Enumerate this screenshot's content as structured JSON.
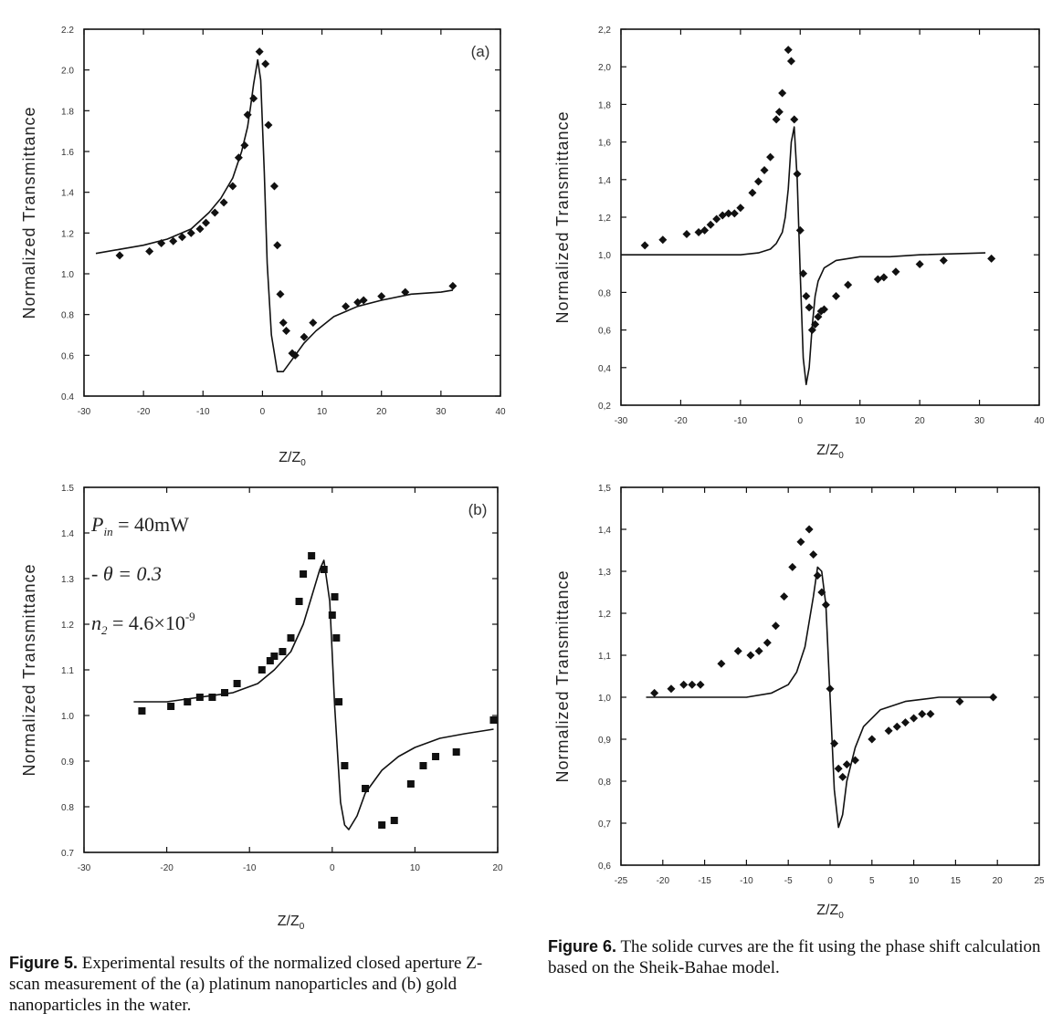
{
  "charts": [
    {
      "id": "fig5a",
      "panel_label": "(a)",
      "xlabel": "Z/Z",
      "xlabel_sub": "0",
      "ylabel": "Normalized Transmittance",
      "annotations": []
    },
    {
      "id": "fig6a",
      "panel_label": "",
      "xlabel": "Z/Z",
      "xlabel_sub": "0",
      "ylabel": "Normalized Transmittance",
      "annotations": []
    },
    {
      "id": "fig5b",
      "panel_label": "(b)",
      "xlabel": "Z/Z",
      "xlabel_sub": "0",
      "ylabel": "Normalized Transmittance",
      "annotations": [
        "Pin = 40mW",
        "- θ = 0.3",
        "n2 = 4.6×10⁻⁹"
      ]
    },
    {
      "id": "fig6b",
      "panel_label": "",
      "xlabel": "Z/Z",
      "xlabel_sub": "0",
      "ylabel": "Normalized Transmittance",
      "annotations": []
    }
  ],
  "captions": {
    "fig5_label": "Figure 5.",
    "fig5_text": "Experimental results of the normalized closed aperture Z-scan measurement of the (a) platinum nanoparticles and (b) gold nanoparticles in the water.",
    "fig6_label": "Figure 6.",
    "fig6_text": "The solide curves are the fit using the phase shift calculation based on the Sheik-Bahae model."
  },
  "chart_data": [
    {
      "type": "scatter",
      "xlim": [
        -30,
        40
      ],
      "ylim": [
        0.4,
        2.2
      ],
      "xticks": [
        "-30",
        "-20",
        "-10",
        "0",
        "10",
        "20",
        "30",
        "40"
      ],
      "yticks": [
        "0.4",
        "0.6",
        "0.8",
        "1.0",
        "1.2",
        "1.4",
        "1.6",
        "1.8",
        "2.0",
        "2.2"
      ],
      "series": [
        {
          "kind": "points",
          "marker": "diamond",
          "x": [
            -24,
            -19,
            -17,
            -15,
            -13.5,
            -12,
            -10.5,
            -9.5,
            -8,
            -6.5,
            -5,
            -4,
            -3,
            -2.5,
            -1.5,
            -0.5,
            0.5,
            1,
            2,
            2.5,
            3,
            3.5,
            4,
            5,
            5.5,
            7,
            8.5,
            14,
            16,
            17,
            20,
            24,
            32
          ],
          "y": [
            1.09,
            1.11,
            1.15,
            1.16,
            1.18,
            1.2,
            1.22,
            1.25,
            1.3,
            1.35,
            1.43,
            1.57,
            1.63,
            1.78,
            1.86,
            2.09,
            2.03,
            1.73,
            1.43,
            1.14,
            0.9,
            0.76,
            0.72,
            0.61,
            0.6,
            0.69,
            0.76,
            0.84,
            0.86,
            0.87,
            0.89,
            0.91,
            0.94
          ]
        },
        {
          "kind": "line",
          "x": [
            -28,
            -24,
            -20,
            -16,
            -12,
            -9,
            -7,
            -5,
            -3.5,
            -2.5,
            -2,
            -1.5,
            -0.8,
            -0.3,
            0.3,
            0.8,
            1.5,
            2.5,
            3.5,
            5,
            7,
            9,
            12,
            16,
            20,
            25,
            30,
            32
          ],
          "y": [
            1.1,
            1.12,
            1.14,
            1.17,
            1.22,
            1.3,
            1.37,
            1.47,
            1.6,
            1.72,
            1.82,
            1.93,
            2.05,
            1.95,
            1.5,
            1.05,
            0.7,
            0.52,
            0.52,
            0.58,
            0.66,
            0.72,
            0.79,
            0.84,
            0.87,
            0.9,
            0.91,
            0.92
          ]
        }
      ]
    },
    {
      "type": "scatter",
      "xlim": [
        -30,
        40
      ],
      "ylim": [
        0.2,
        2.2
      ],
      "xticks": [
        "-30",
        "-20",
        "-10",
        "0",
        "10",
        "20",
        "30",
        "40"
      ],
      "yticks": [
        "0,2",
        "0,4",
        "0,6",
        "0,8",
        "1,0",
        "1,2",
        "1,4",
        "1,6",
        "1,8",
        "2,0",
        "2,2"
      ],
      "series": [
        {
          "kind": "points",
          "marker": "diamond",
          "x": [
            -26,
            -23,
            -19,
            -17,
            -16,
            -15,
            -14,
            -13,
            -12,
            -11,
            -10,
            -8,
            -7,
            -6,
            -5,
            -4,
            -3.5,
            -3,
            -2,
            -1.5,
            -1,
            -0.5,
            0,
            0.5,
            1,
            1.5,
            2,
            2.5,
            3,
            3.5,
            4,
            6,
            8,
            13,
            14,
            16,
            20,
            24,
            32
          ],
          "y": [
            1.05,
            1.08,
            1.11,
            1.12,
            1.13,
            1.16,
            1.19,
            1.21,
            1.22,
            1.22,
            1.25,
            1.33,
            1.39,
            1.45,
            1.52,
            1.72,
            1.76,
            1.86,
            2.09,
            2.03,
            1.72,
            1.43,
            1.13,
            0.9,
            0.78,
            0.72,
            0.6,
            0.63,
            0.67,
            0.7,
            0.71,
            0.78,
            0.84,
            0.87,
            0.88,
            0.91,
            0.95,
            0.97,
            0.98
          ]
        },
        {
          "kind": "line",
          "x": [
            -30,
            -20,
            -10,
            -7,
            -5,
            -4,
            -3,
            -2.5,
            -2,
            -1.5,
            -1,
            -0.5,
            0,
            0.5,
            1,
            1.5,
            2,
            2.5,
            3,
            4,
            6,
            10,
            15,
            20,
            31
          ],
          "y": [
            1.0,
            1.0,
            1.0,
            1.01,
            1.03,
            1.06,
            1.12,
            1.2,
            1.35,
            1.6,
            1.68,
            1.4,
            0.9,
            0.45,
            0.31,
            0.4,
            0.62,
            0.78,
            0.86,
            0.93,
            0.97,
            0.99,
            0.99,
            1.0,
            1.01
          ]
        }
      ]
    },
    {
      "type": "scatter",
      "xlim": [
        -30,
        20
      ],
      "ylim": [
        0.7,
        1.5
      ],
      "xticks": [
        "-30",
        "-20",
        "-10",
        "0",
        "10",
        "20"
      ],
      "yticks": [
        "0.7",
        "0.8",
        "0.9",
        "1.0",
        "1.1",
        "1.2",
        "1.3",
        "1.4",
        "1.5"
      ],
      "series": [
        {
          "kind": "points",
          "marker": "square",
          "x": [
            -23,
            -19.5,
            -17.5,
            -16,
            -14.5,
            -13,
            -11.5,
            -8.5,
            -7.5,
            -7,
            -6,
            -5,
            -4,
            -3.5,
            -2.5,
            -1,
            0,
            0.3,
            0.5,
            0.8,
            1.5,
            4,
            6,
            7.5,
            9.5,
            11,
            12.5,
            15,
            19.5
          ],
          "y": [
            1.01,
            1.02,
            1.03,
            1.04,
            1.04,
            1.05,
            1.07,
            1.1,
            1.12,
            1.13,
            1.14,
            1.17,
            1.25,
            1.31,
            1.35,
            1.32,
            1.22,
            1.26,
            1.17,
            1.03,
            0.89,
            0.84,
            0.76,
            0.77,
            0.85,
            0.89,
            0.91,
            0.92,
            0.99
          ]
        },
        {
          "kind": "line",
          "x": [
            -24,
            -20,
            -16,
            -12,
            -9,
            -7,
            -5,
            -3.5,
            -2.5,
            -1.5,
            -1,
            -0.3,
            0.3,
            1,
            1.5,
            2,
            3,
            4,
            6,
            8,
            10,
            13,
            16,
            19.5
          ],
          "y": [
            1.03,
            1.03,
            1.04,
            1.05,
            1.07,
            1.1,
            1.14,
            1.2,
            1.26,
            1.32,
            1.34,
            1.25,
            1.02,
            0.81,
            0.76,
            0.75,
            0.78,
            0.83,
            0.88,
            0.91,
            0.93,
            0.95,
            0.96,
            0.97
          ]
        }
      ]
    },
    {
      "type": "scatter",
      "xlim": [
        -25,
        25
      ],
      "ylim": [
        0.6,
        1.5
      ],
      "xticks": [
        "-25",
        "-20",
        "-15",
        "-10",
        "-5",
        "0",
        "5",
        "10",
        "15",
        "20",
        "25"
      ],
      "yticks": [
        "0,6",
        "0,7",
        "0,8",
        "0,9",
        "1,0",
        "1,1",
        "1,2",
        "1,3",
        "1,4",
        "1,5"
      ],
      "series": [
        {
          "kind": "points",
          "marker": "diamond",
          "x": [
            -21,
            -19,
            -17.5,
            -16.5,
            -15.5,
            -13,
            -11,
            -9.5,
            -8.5,
            -7.5,
            -6.5,
            -5.5,
            -4.5,
            -3.5,
            -2.5,
            -2,
            -1.5,
            -1,
            -0.5,
            0,
            0.5,
            1,
            1.5,
            2,
            3,
            5,
            7,
            8,
            9,
            10,
            11,
            12,
            15.5,
            19.5
          ],
          "y": [
            1.01,
            1.02,
            1.03,
            1.03,
            1.03,
            1.08,
            1.11,
            1.1,
            1.11,
            1.13,
            1.17,
            1.24,
            1.31,
            1.37,
            1.4,
            1.34,
            1.29,
            1.25,
            1.22,
            1.02,
            0.89,
            0.83,
            0.81,
            0.84,
            0.85,
            0.9,
            0.92,
            0.93,
            0.94,
            0.95,
            0.96,
            0.96,
            0.99,
            1.0
          ]
        },
        {
          "kind": "line",
          "x": [
            -22,
            -15,
            -10,
            -7,
            -5,
            -4,
            -3,
            -2,
            -1.5,
            -1,
            -0.5,
            0,
            0.5,
            1,
            1.5,
            2,
            3,
            4,
            6,
            9,
            13,
            19.5
          ],
          "y": [
            1.0,
            1.0,
            1.0,
            1.01,
            1.03,
            1.06,
            1.12,
            1.24,
            1.31,
            1.3,
            1.22,
            1.0,
            0.78,
            0.69,
            0.72,
            0.8,
            0.88,
            0.93,
            0.97,
            0.99,
            1.0,
            1.0
          ]
        }
      ]
    }
  ]
}
